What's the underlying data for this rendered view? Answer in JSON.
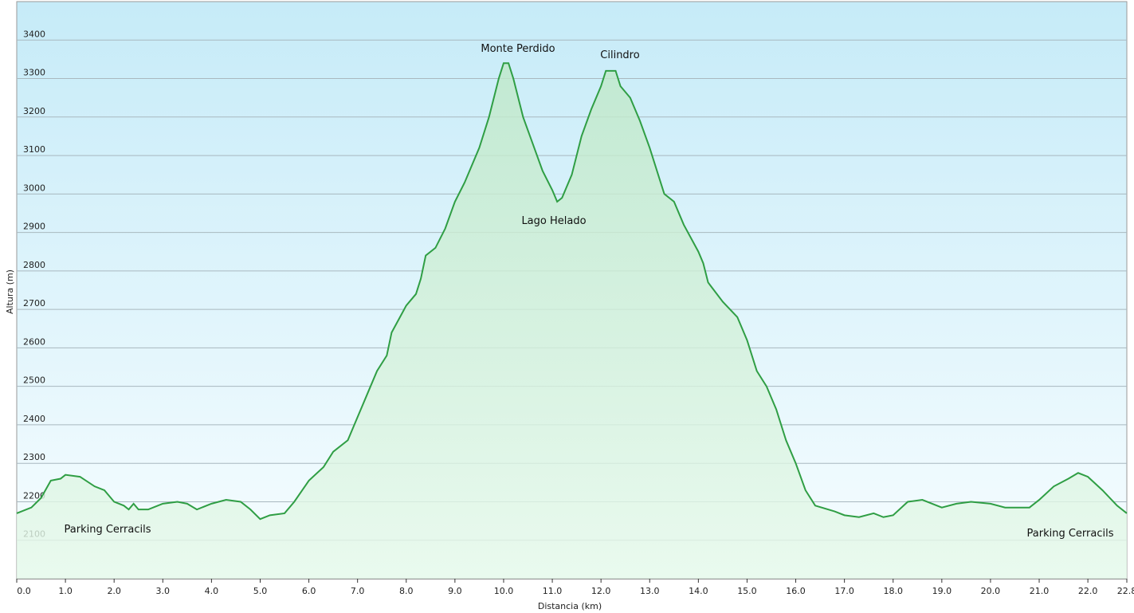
{
  "chart_data": {
    "type": "area",
    "x_label": "Distancia  (km)",
    "y_label": "Altura (m)",
    "color": "#2f9e44",
    "grid": true,
    "xlim": [
      0,
      22.8
    ],
    "ylim": [
      2000,
      3500
    ],
    "yticks": [
      2100,
      2200,
      2300,
      2400,
      2500,
      2600,
      2700,
      2800,
      2900,
      3000,
      3100,
      3200,
      3300,
      3400
    ],
    "xticks": [
      {
        "value": 0,
        "label": "0.0"
      },
      {
        "value": 1,
        "label": "1.0"
      },
      {
        "value": 2,
        "label": "2.0"
      },
      {
        "value": 3,
        "label": "3.0"
      },
      {
        "value": 4,
        "label": "4.0"
      },
      {
        "value": 5,
        "label": "5.0"
      },
      {
        "value": 6,
        "label": "6.0"
      },
      {
        "value": 7,
        "label": "7.0"
      },
      {
        "value": 8,
        "label": "8.0"
      },
      {
        "value": 9,
        "label": "9.0"
      },
      {
        "value": 10,
        "label": "10.0"
      },
      {
        "value": 11,
        "label": "11.0"
      },
      {
        "value": 12,
        "label": "12.0"
      },
      {
        "value": 13,
        "label": "13.0"
      },
      {
        "value": 14,
        "label": "14.0"
      },
      {
        "value": 15,
        "label": "15.0"
      },
      {
        "value": 16,
        "label": "16.0"
      },
      {
        "value": 17,
        "label": "17.0"
      },
      {
        "value": 18,
        "label": "18.0"
      },
      {
        "value": 19,
        "label": "19.0"
      },
      {
        "value": 20,
        "label": "20.0"
      },
      {
        "value": 21,
        "label": "21.0"
      },
      {
        "value": 22,
        "label": "22.0"
      },
      22.8
    ],
    "annotations": [
      "Parking Cerracils",
      "Monte Perdido",
      "Cilindro",
      "Lago Helado",
      "Parking Cerracils"
    ],
    "x": [
      0.0,
      0.3,
      0.5,
      0.7,
      0.9,
      1.0,
      1.3,
      1.6,
      1.8,
      2.0,
      2.2,
      2.3,
      2.4,
      2.5,
      2.7,
      3.0,
      3.3,
      3.5,
      3.7,
      4.0,
      4.3,
      4.6,
      4.8,
      5.0,
      5.2,
      5.5,
      5.7,
      6.0,
      6.3,
      6.5,
      6.8,
      7.0,
      7.2,
      7.4,
      7.6,
      7.7,
      8.0,
      8.2,
      8.3,
      8.4,
      8.6,
      8.8,
      9.0,
      9.2,
      9.5,
      9.7,
      9.9,
      10.0,
      10.1,
      10.2,
      10.4,
      10.6,
      10.8,
      11.0,
      11.1,
      11.2,
      11.4,
      11.6,
      11.8,
      12.0,
      12.1,
      12.3,
      12.4,
      12.6,
      12.8,
      13.0,
      13.2,
      13.3,
      13.5,
      13.7,
      14.0,
      14.1,
      14.2,
      14.5,
      14.8,
      15.0,
      15.2,
      15.4,
      15.6,
      15.8,
      16.0,
      16.2,
      16.4,
      16.8,
      17.0,
      17.3,
      17.6,
      17.8,
      18.0,
      18.3,
      18.6,
      19.0,
      19.3,
      19.6,
      20.0,
      20.3,
      20.6,
      20.8,
      21.0,
      21.3,
      21.6,
      21.8,
      22.0,
      22.3,
      22.6,
      22.8
    ],
    "values": [
      2170,
      2185,
      2210,
      2255,
      2260,
      2270,
      2265,
      2240,
      2230,
      2200,
      2190,
      2180,
      2195,
      2180,
      2180,
      2195,
      2200,
      2195,
      2180,
      2195,
      2205,
      2200,
      2180,
      2155,
      2165,
      2170,
      2200,
      2255,
      2290,
      2330,
      2360,
      2420,
      2480,
      2540,
      2580,
      2640,
      2710,
      2740,
      2780,
      2840,
      2860,
      2910,
      2980,
      3030,
      3120,
      3200,
      3300,
      3340,
      3340,
      3300,
      3200,
      3130,
      3060,
      3010,
      2980,
      2990,
      3050,
      3150,
      3220,
      3280,
      3320,
      3320,
      3280,
      3250,
      3190,
      3120,
      3040,
      3000,
      2980,
      2920,
      2850,
      2820,
      2770,
      2720,
      2680,
      2620,
      2540,
      2500,
      2440,
      2360,
      2300,
      2230,
      2190,
      2175,
      2165,
      2160,
      2170,
      2160,
      2165,
      2200,
      2205,
      2185,
      2195,
      2200,
      2195,
      2185,
      2185,
      2185,
      2205,
      2240,
      2260,
      2275,
      2265,
      2230,
      2190,
      2170
    ]
  }
}
